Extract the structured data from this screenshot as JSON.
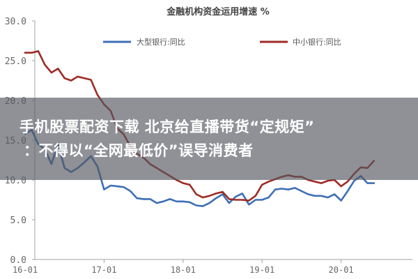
{
  "chart_data": {
    "type": "line",
    "title": "金融机构资金运用增速 %",
    "xlabel": "",
    "ylabel": "",
    "ylim": [
      0,
      30
    ],
    "yticks": [
      "0.0",
      "5.0",
      "10.0",
      "15.0",
      "20.0",
      "25.0",
      "30.0"
    ],
    "x_tick_labels": [
      "16-01",
      "17-01",
      "18-01",
      "19-01",
      "20-01"
    ],
    "x_start": "2016-01",
    "x_end": "2020-06",
    "grid": false,
    "legend_placement": "top",
    "series": [
      {
        "name": "大型银行:同比",
        "color": "#3d6fb6",
        "x": [
          "2016-01",
          "2016-02",
          "2016-03",
          "2016-04",
          "2016-05",
          "2016-06",
          "2016-07",
          "2016-08",
          "2016-09",
          "2016-10",
          "2016-11",
          "2016-12",
          "2017-01",
          "2017-02",
          "2017-03",
          "2017-04",
          "2017-05",
          "2017-06",
          "2017-07",
          "2017-08",
          "2017-09",
          "2017-10",
          "2017-11",
          "2017-12",
          "2018-01",
          "2018-02",
          "2018-03",
          "2018-04",
          "2018-05",
          "2018-06",
          "2018-07",
          "2018-08",
          "2018-09",
          "2018-10",
          "2018-11",
          "2018-12",
          "2019-01",
          "2019-02",
          "2019-03",
          "2019-04",
          "2019-05",
          "2019-06",
          "2019-07",
          "2019-08",
          "2019-09",
          "2019-10",
          "2019-11",
          "2019-12",
          "2020-01",
          "2020-02",
          "2020-03",
          "2020-04",
          "2020-05",
          "2020-06"
        ],
        "values": [
          15.8,
          16.3,
          14.5,
          13.9,
          12.0,
          14.5,
          11.5,
          11.0,
          11.5,
          12.2,
          13.0,
          11.7,
          8.8,
          9.3,
          9.2,
          9.1,
          8.6,
          7.7,
          7.6,
          7.6,
          7.1,
          7.3,
          7.6,
          7.3,
          7.3,
          7.2,
          6.8,
          6.7,
          7.1,
          7.7,
          8.2,
          7.1,
          7.9,
          8.3,
          6.9,
          7.5,
          7.5,
          7.8,
          8.8,
          8.9,
          8.8,
          9.0,
          8.6,
          8.2,
          8.0,
          8.0,
          7.8,
          8.2,
          7.4,
          8.6,
          9.9,
          10.5,
          9.6,
          9.6
        ]
      },
      {
        "name": "中小银行:同比",
        "color": "#9e2b25",
        "x": [
          "2016-01",
          "2016-02",
          "2016-03",
          "2016-04",
          "2016-05",
          "2016-06",
          "2016-07",
          "2016-08",
          "2016-09",
          "2016-10",
          "2016-11",
          "2016-12",
          "2017-01",
          "2017-02",
          "2017-03",
          "2017-04",
          "2017-05",
          "2017-06",
          "2017-07",
          "2017-08",
          "2017-09",
          "2017-10",
          "2017-11",
          "2017-12",
          "2018-01",
          "2018-02",
          "2018-03",
          "2018-04",
          "2018-05",
          "2018-06",
          "2018-07",
          "2018-08",
          "2018-09",
          "2018-10",
          "2018-11",
          "2018-12",
          "2019-01",
          "2019-02",
          "2019-03",
          "2019-04",
          "2019-05",
          "2019-06",
          "2019-07",
          "2019-08",
          "2019-09",
          "2019-10",
          "2019-11",
          "2019-12",
          "2020-01",
          "2020-02",
          "2020-03",
          "2020-04",
          "2020-05",
          "2020-06"
        ],
        "values": [
          26.0,
          26.0,
          26.2,
          24.5,
          23.5,
          24.0,
          22.8,
          22.5,
          23.0,
          22.8,
          22.6,
          20.7,
          19.5,
          18.7,
          16.5,
          15.7,
          14.2,
          13.3,
          12.8,
          12.0,
          11.5,
          11.0,
          10.5,
          10.0,
          9.6,
          9.4,
          8.2,
          7.8,
          8.0,
          8.3,
          8.5,
          7.6,
          7.5,
          7.5,
          7.4,
          8.0,
          9.4,
          9.8,
          10.1,
          10.4,
          10.6,
          10.4,
          10.4,
          10.0,
          9.8,
          9.6,
          9.9,
          10.0,
          9.2,
          9.8,
          10.8,
          11.6,
          11.5,
          12.4
        ]
      }
    ]
  },
  "overlay": {
    "line1": "手机股票配资下载   北京给直播带货“定规矩”",
    "line2": "：不得以“全网最低价”误导消费者"
  },
  "colors": {
    "axis": "#a0a0a0",
    "tick_text": "#666666",
    "title_text": "#444444",
    "banner": "#555860"
  }
}
